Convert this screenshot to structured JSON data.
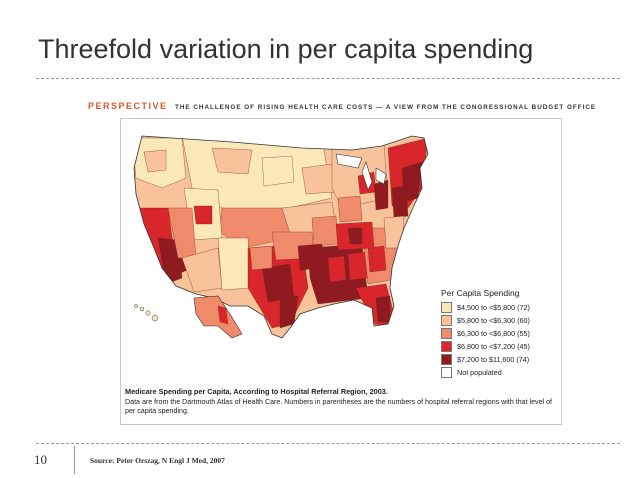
{
  "slide": {
    "title": "Threefold variation in per capita spending",
    "page_number": "10",
    "source": "Source: Peter Orszag, N Engl J Med, 2007"
  },
  "figure": {
    "perspective_label": "PERSPECTIVE",
    "header": "THE CHALLENGE OF RISING HEALTH CARE COSTS — A VIEW FROM THE CONGRESSIONAL BUDGET OFFICE",
    "caption_title": "Medicare Spending per Capita, According to Hospital Referral Region, 2003.",
    "caption_body": "Data are from the Dartmouth Atlas of Health Care. Numbers in parentheses are the numbers of hospital referral regions with that level of per capita spending."
  },
  "legend": {
    "title": "Per Capita Spending",
    "items": [
      {
        "label": "$4,500 to <$5,800 (72)",
        "color": "#fbe8b8"
      },
      {
        "label": "$5,800 to <$6,300 (60)",
        "color": "#f8c39a"
      },
      {
        "label": "$6,300 to <$6,800 (55)",
        "color": "#ef8a6a"
      },
      {
        "label": "$6,800 to <$7,200 (45)",
        "color": "#d8262c"
      },
      {
        "label": "$7,200 to $11,600 (74)",
        "color": "#8f1a1f"
      },
      {
        "label": "Not populated",
        "color": "#ffffff"
      }
    ]
  }
}
